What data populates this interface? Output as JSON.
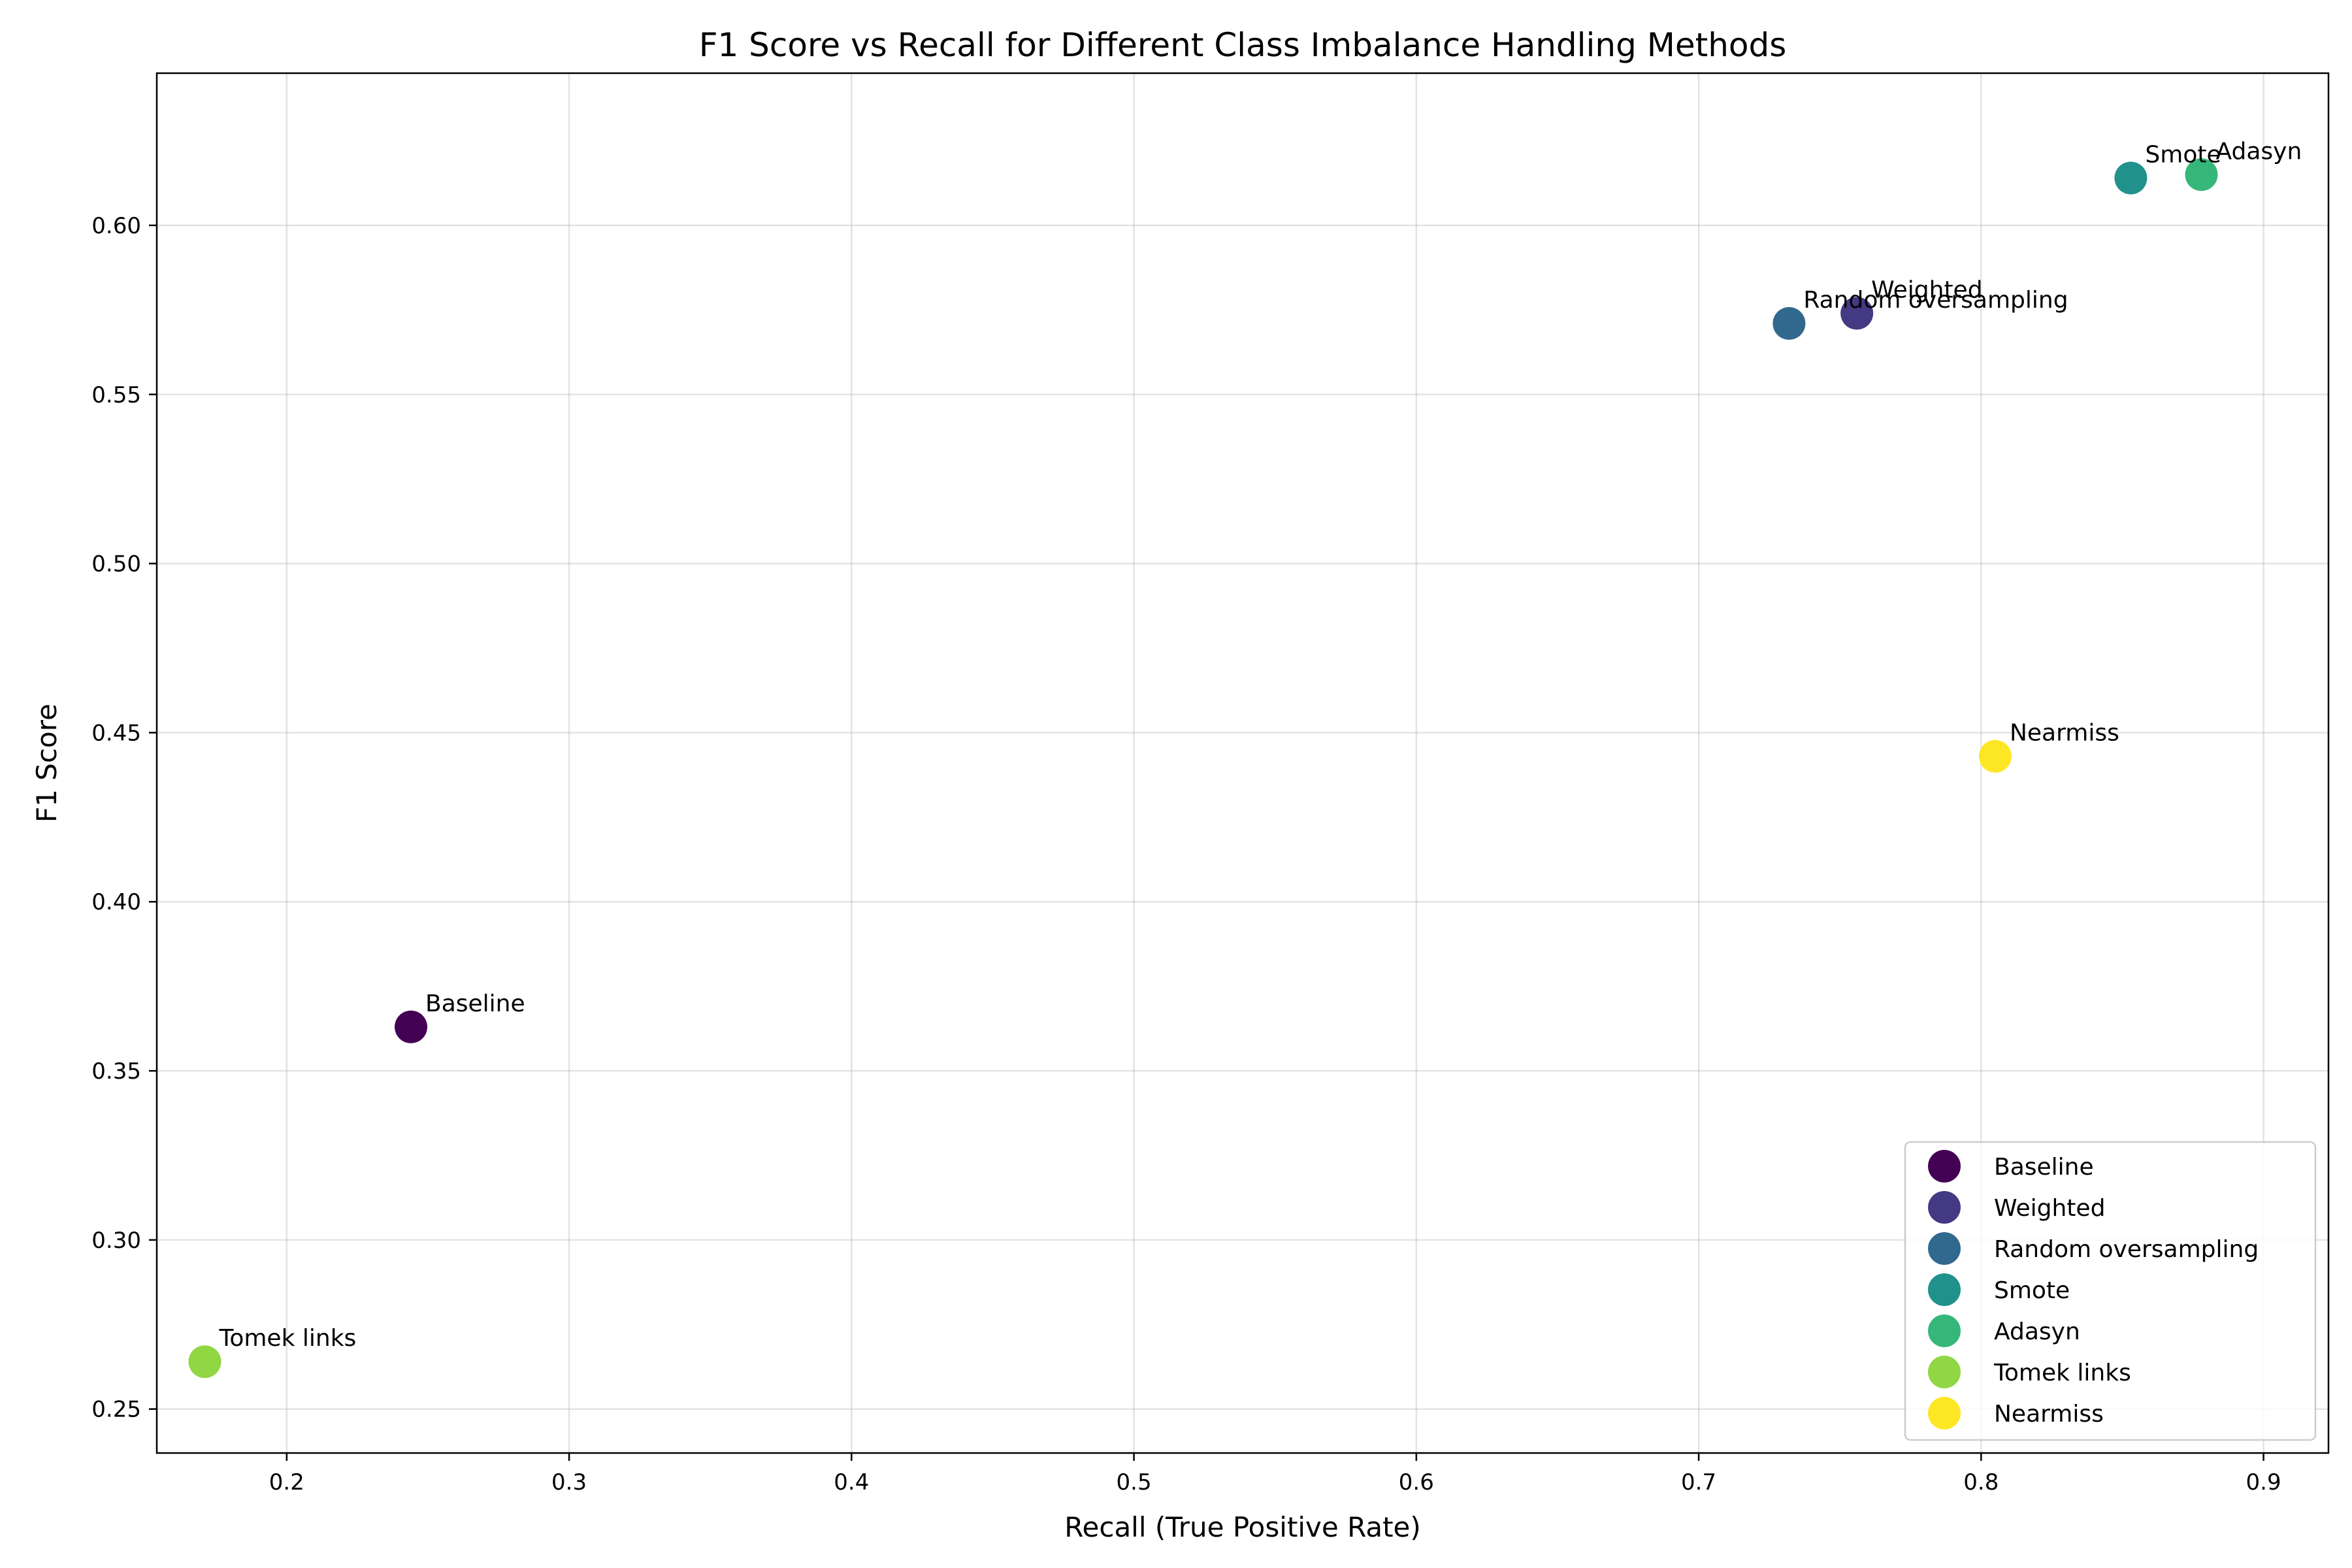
{
  "chart_data": {
    "type": "scatter",
    "title": "F1 Score vs Recall for Different Class Imbalance Handling Methods",
    "xlabel": "Recall (True Positive Rate)",
    "ylabel": "F1 Score",
    "xlim": [
      0.154,
      0.923
    ],
    "ylim": [
      0.237,
      0.645
    ],
    "xticks": [
      0.2,
      0.3,
      0.4,
      0.5,
      0.6,
      0.7,
      0.8,
      0.9
    ],
    "xtick_labels": [
      "0.2",
      "0.3",
      "0.4",
      "0.5",
      "0.6",
      "0.7",
      "0.8",
      "0.9"
    ],
    "yticks": [
      0.25,
      0.3,
      0.35,
      0.4,
      0.45,
      0.5,
      0.55,
      0.6
    ],
    "ytick_labels": [
      "0.25",
      "0.30",
      "0.35",
      "0.40",
      "0.45",
      "0.50",
      "0.55",
      "0.60"
    ],
    "grid": true,
    "legend_position": "lower-right",
    "series": [
      {
        "name": "Baseline",
        "x": 0.244,
        "y": 0.363,
        "color": "#440154"
      },
      {
        "name": "Weighted",
        "x": 0.756,
        "y": 0.574,
        "color": "#443983"
      },
      {
        "name": "Random oversampling",
        "x": 0.732,
        "y": 0.571,
        "color": "#31688e"
      },
      {
        "name": "Smote",
        "x": 0.853,
        "y": 0.614,
        "color": "#21918c"
      },
      {
        "name": "Adasyn",
        "x": 0.878,
        "y": 0.615,
        "color": "#35b779"
      },
      {
        "name": "Tomek links",
        "x": 0.171,
        "y": 0.264,
        "color": "#90d743"
      },
      {
        "name": "Nearmiss",
        "x": 0.805,
        "y": 0.443,
        "color": "#fde725"
      }
    ]
  }
}
